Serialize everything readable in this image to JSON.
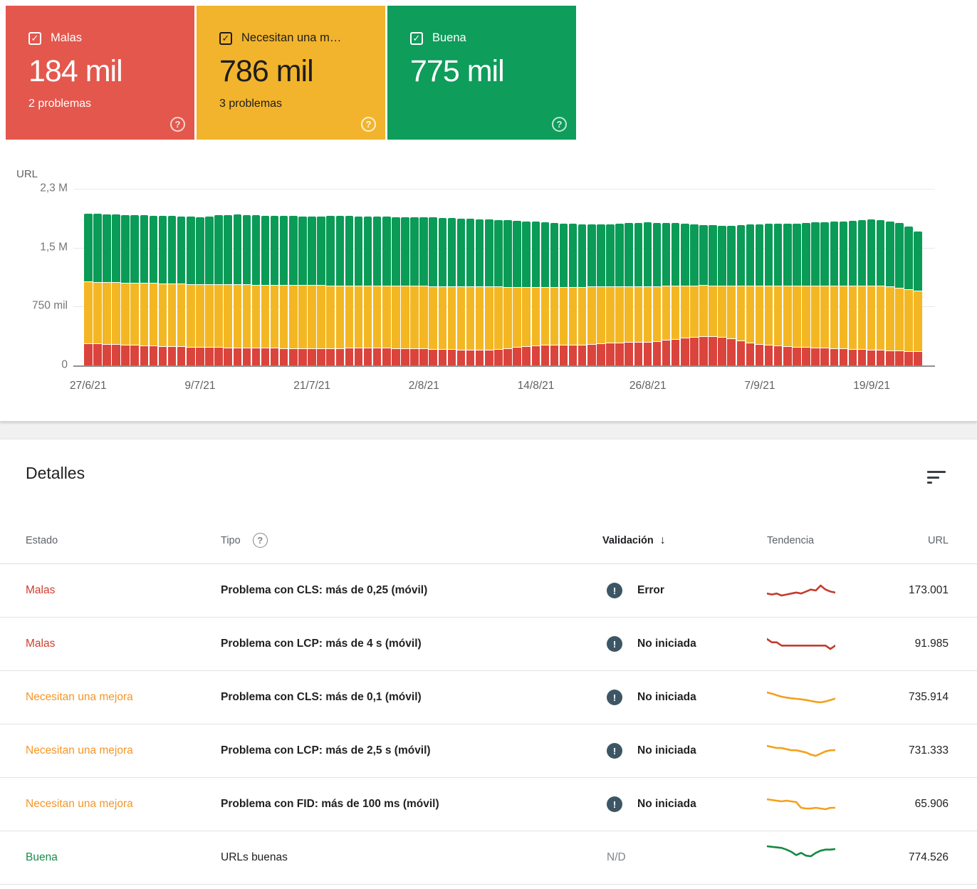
{
  "cards": [
    {
      "label": "Malas",
      "value": "184 mil",
      "sub": "2 problemas",
      "bg": "#E4574D",
      "theme": "light",
      "checkbox": "checked",
      "help_icon": "help-circle-icon"
    },
    {
      "label": "Necesitan una m…",
      "value": "786 mil",
      "sub": "3 problemas",
      "bg": "#F2B42C",
      "theme": "dark",
      "checkbox": "checked",
      "help_icon": "help-circle-icon"
    },
    {
      "label": "Buena",
      "value": "775 mil",
      "sub": "",
      "bg": "#0E9D5B",
      "theme": "light",
      "checkbox": "checked",
      "help_icon": "help-circle-icon"
    }
  ],
  "chart_data": {
    "type": "bar",
    "stacked": true,
    "ylabel": "URL",
    "unit": "thousands of URLs",
    "ylim": [
      0,
      2300
    ],
    "yticks": [
      {
        "label": "2,3 M",
        "value": 2300
      },
      {
        "label": "1,5 M",
        "value": 1533
      },
      {
        "label": "750 mil",
        "value": 766
      },
      {
        "label": "0",
        "value": 0
      }
    ],
    "x_tick_labels": [
      "27/6/21",
      "9/7/21",
      "21/7/21",
      "2/8/21",
      "14/8/21",
      "26/8/21",
      "7/9/21",
      "19/9/21"
    ],
    "x_tick_indices": [
      0,
      12,
      24,
      36,
      48,
      60,
      72,
      84
    ],
    "grid": true,
    "series": [
      {
        "name": "Malas",
        "color": "#DB443C",
        "values": [
          290,
          286,
          282,
          278,
          273,
          268,
          263,
          258,
          253,
          250,
          248,
          245,
          242,
          240,
          238,
          236,
          234,
          232,
          230,
          229,
          228,
          227,
          226,
          225,
          224,
          224,
          225,
          226,
          228,
          230,
          230,
          229,
          228,
          227,
          226,
          225,
          222,
          218,
          214,
          210,
          206,
          202,
          200,
          202,
          210,
          225,
          240,
          252,
          262,
          268,
          272,
          270,
          268,
          272,
          280,
          288,
          295,
          300,
          305,
          308,
          310,
          318,
          330,
          345,
          360,
          375,
          385,
          380,
          370,
          350,
          325,
          300,
          280,
          268,
          258,
          250,
          245,
          240,
          235,
          230,
          225,
          220,
          215,
          210,
          205,
          200,
          196,
          192,
          188,
          184
        ]
      },
      {
        "name": "Necesitan una mejora",
        "color": "#F4B724",
        "values": [
          800,
          801,
          803,
          804,
          807,
          809,
          812,
          814,
          817,
          817,
          817,
          817,
          818,
          819,
          819,
          820,
          821,
          821,
          822,
          822,
          821,
          821,
          821,
          821,
          821,
          820,
          818,
          816,
          813,
          810,
          809,
          809,
          810,
          810,
          810,
          810,
          813,
          816,
          818,
          821,
          824,
          827,
          827,
          824,
          815,
          798,
          782,
          769,
          758,
          753,
          750,
          752,
          755,
          752,
          745,
          738,
          732,
          728,
          724,
          721,
          720,
          714,
          705,
          692,
          680,
          667,
          660,
          663,
          672,
          690,
          713,
          737,
          755,
          767,
          778,
          786,
          792,
          797,
          803,
          808,
          814,
          819,
          825,
          830,
          835,
          835,
          832,
          823,
          807,
          786
        ]
      },
      {
        "name": "Buena",
        "color": "#0A9B57",
        "values": [
          890,
          888,
          885,
          883,
          880,
          881,
          880,
          880,
          880,
          878,
          875,
          873,
          870,
          881,
          898,
          904,
          910,
          907,
          903,
          901,
          901,
          900,
          898,
          896,
          895,
          898,
          901,
          903,
          904,
          903,
          901,
          900,
          897,
          896,
          895,
          895,
          895,
          892,
          890,
          887,
          885,
          881,
          878,
          874,
          870,
          865,
          858,
          854,
          850,
          841,
          833,
          828,
          822,
          814,
          810,
          810,
          813,
          820,
          826,
          829,
          830,
          826,
          820,
          816,
          810,
          798,
          785,
          782,
          778,
          782,
          787,
          795,
          805,
          807,
          809,
          812,
          813,
          818,
          822,
          827,
          831,
          839,
          845,
          852,
          860,
          855,
          847,
          840,
          815,
          775
        ]
      }
    ]
  },
  "details": {
    "title": "Detalles",
    "filter_icon": "filter-list-icon",
    "columns": {
      "estado": "Estado",
      "tipo": "Tipo",
      "validacion": "Validación",
      "tendencia": "Tendencia",
      "url": "URL"
    },
    "sort_arrow": "↓",
    "rows": [
      {
        "estado": "Malas",
        "estado_color": "#CE3E2F",
        "tipo": "Problema con CLS: más de 0,25 (móvil)",
        "tipo_bold": true,
        "validacion": "Error",
        "has_icon": true,
        "trend_color": "#C23C2E",
        "trend": [
          172,
          171,
          172,
          170,
          171,
          172,
          173,
          172,
          174,
          176,
          175,
          180,
          176,
          174,
          173
        ],
        "url": "173.001"
      },
      {
        "estado": "Malas",
        "estado_color": "#CE3E2F",
        "tipo": "Problema con LCP: más de 4 s (móvil)",
        "tipo_bold": true,
        "validacion": "No iniciada",
        "has_icon": true,
        "trend_color": "#C23C2E",
        "trend": [
          94,
          93,
          93,
          92,
          92,
          92,
          92,
          92,
          92,
          92,
          92,
          92,
          92,
          91,
          92
        ],
        "url": "91.985"
      },
      {
        "estado": "Necesitan una mejora",
        "estado_color": "#F59628",
        "tipo": "Problema con CLS: más de 0,1 (móvil)",
        "tipo_bold": true,
        "validacion": "No iniciada",
        "has_icon": true,
        "trend_color": "#F5A01D",
        "trend": [
          762,
          757,
          750,
          744,
          740,
          737,
          735,
          733,
          730,
          726,
          722,
          720,
          724,
          730,
          736
        ],
        "url": "735.914"
      },
      {
        "estado": "Necesitan una mejora",
        "estado_color": "#F59628",
        "tipo": "Problema con LCP: más de 2,5 s (móvil)",
        "tipo_bold": true,
        "validacion": "No iniciada",
        "has_icon": true,
        "trend_color": "#F5A01D",
        "trend": [
          735,
          734,
          733,
          733,
          732,
          731,
          731,
          730,
          729,
          727,
          726,
          728,
          730,
          731,
          731
        ],
        "url": "731.333"
      },
      {
        "estado": "Necesitan una mejora",
        "estado_color": "#F59628",
        "tipo": "Problema con FID: más de 100 ms (móvil)",
        "tipo_bold": true,
        "validacion": "No iniciada",
        "has_icon": true,
        "trend_color": "#F5A01D",
        "trend": [
          78,
          77,
          76,
          75,
          76,
          75,
          74,
          66,
          65,
          65,
          66,
          65,
          64,
          66,
          66
        ],
        "url": "65.906"
      },
      {
        "estado": "Buena",
        "estado_color": "#1B8A4C",
        "tipo": "URLs buenas",
        "tipo_bold": false,
        "validacion": "N/D",
        "has_icon": false,
        "trend_color": "#148A43",
        "trend": [
          780,
          779,
          778,
          777,
          774,
          770,
          764,
          768,
          763,
          762,
          768,
          772,
          774,
          774,
          775
        ],
        "url": "774.526"
      }
    ]
  }
}
